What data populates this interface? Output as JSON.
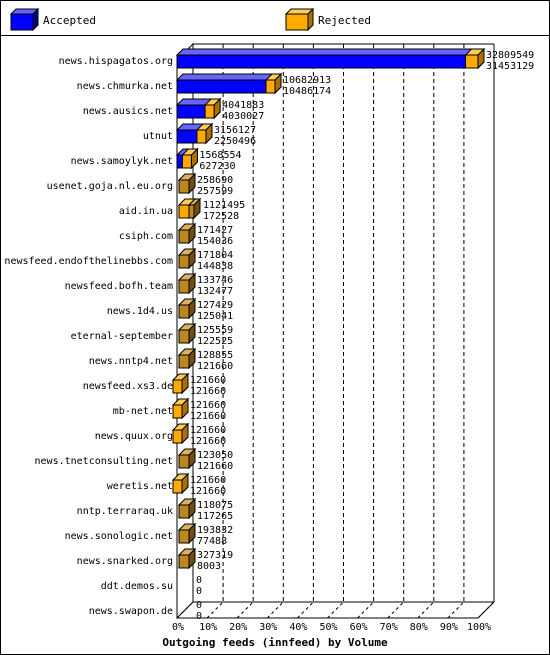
{
  "legend": {
    "accepted_label": "Accepted",
    "rejected_label": "Rejected"
  },
  "colors": {
    "accepted": "#0000ff",
    "rejected": "#ffaa00"
  },
  "chart_data": {
    "type": "bar",
    "title": "Outgoing feeds (innfeed) by Volume",
    "x_ticks": [
      "0%",
      "10%",
      "20%",
      "30%",
      "40%",
      "50%",
      "60%",
      "70%",
      "80%",
      "90%",
      "100%"
    ],
    "max_value": 32809549,
    "grid": true,
    "legend_position": "top",
    "series_names": [
      "Accepted",
      "Rejected"
    ],
    "categories": [
      {
        "name": "news.hispagatos.org",
        "accepted": 32809549,
        "rejected": 31453129,
        "top": "32809549",
        "bottom": "31453129",
        "color": "blue"
      },
      {
        "name": "news.chmurka.net",
        "accepted": 10682913,
        "rejected": 10486174,
        "top": "10682913",
        "bottom": "10486174",
        "color": "blue"
      },
      {
        "name": "news.ausics.net",
        "accepted": 4041883,
        "rejected": 4030027,
        "top": "4041883",
        "bottom": "4030027",
        "color": "blue"
      },
      {
        "name": "utnut",
        "accepted": 3156127,
        "rejected": 2250496,
        "top": "3156127",
        "bottom": "2250496",
        "color": "blue"
      },
      {
        "name": "news.samoylyk.net",
        "accepted": 1568554,
        "rejected": 627230,
        "top": "1568554",
        "bottom": "627230",
        "color": "blue"
      },
      {
        "name": "usenet.goja.nl.eu.org",
        "accepted": 258690,
        "rejected": 257599,
        "top": "258690",
        "bottom": "257599",
        "color": "brown"
      },
      {
        "name": "aid.in.ua",
        "accepted": 1121495,
        "rejected": 172528,
        "top": "1121495",
        "bottom": "172528",
        "color": "brown"
      },
      {
        "name": "csiph.com",
        "accepted": 171427,
        "rejected": 154036,
        "top": "171427",
        "bottom": "154036",
        "color": "brown"
      },
      {
        "name": "newsfeed.endofthelinebbs.com",
        "accepted": 171804,
        "rejected": 144838,
        "top": "171804",
        "bottom": "144838",
        "color": "brown"
      },
      {
        "name": "newsfeed.bofh.team",
        "accepted": 133746,
        "rejected": 132477,
        "top": "133746",
        "bottom": "132477",
        "color": "brown"
      },
      {
        "name": "news.1d4.us",
        "accepted": 127429,
        "rejected": 125041,
        "top": "127429",
        "bottom": "125041",
        "color": "brown"
      },
      {
        "name": "eternal-september",
        "accepted": 125559,
        "rejected": 122525,
        "top": "125559",
        "bottom": "122525",
        "color": "brown"
      },
      {
        "name": "news.nntp4.net",
        "accepted": 128855,
        "rejected": 121660,
        "top": "128855",
        "bottom": "121660",
        "color": "brown"
      },
      {
        "name": "newsfeed.xs3.de",
        "accepted": 121660,
        "rejected": 121660,
        "top": "121660",
        "bottom": "121660",
        "color": "blue"
      },
      {
        "name": "mb-net.net",
        "accepted": 121660,
        "rejected": 121660,
        "top": "121660",
        "bottom": "121660",
        "color": "blue"
      },
      {
        "name": "news.quux.org",
        "accepted": 121660,
        "rejected": 121660,
        "top": "121660",
        "bottom": "121660",
        "color": "blue"
      },
      {
        "name": "news.tnetconsulting.net",
        "accepted": 123050,
        "rejected": 121660,
        "top": "123050",
        "bottom": "121660",
        "color": "brown"
      },
      {
        "name": "weretis.net",
        "accepted": 121660,
        "rejected": 121660,
        "top": "121660",
        "bottom": "121660",
        "color": "blue"
      },
      {
        "name": "nntp.terraraq.uk",
        "accepted": 118075,
        "rejected": 117265,
        "top": "118075",
        "bottom": "117265",
        "color": "brown"
      },
      {
        "name": "news.sonologic.net",
        "accepted": 193832,
        "rejected": 77488,
        "top": "193832",
        "bottom": "77488",
        "color": "brown"
      },
      {
        "name": "news.snarked.org",
        "accepted": 327319,
        "rejected": 8003,
        "top": "327319",
        "bottom": "8003",
        "color": "brown"
      },
      {
        "name": "ddt.demos.su",
        "accepted": 0,
        "rejected": 0,
        "top": "0",
        "bottom": "0",
        "color": "none"
      },
      {
        "name": "news.swapon.de",
        "accepted": 0,
        "rejected": 0,
        "top": "0",
        "bottom": "0",
        "color": "none"
      }
    ]
  }
}
